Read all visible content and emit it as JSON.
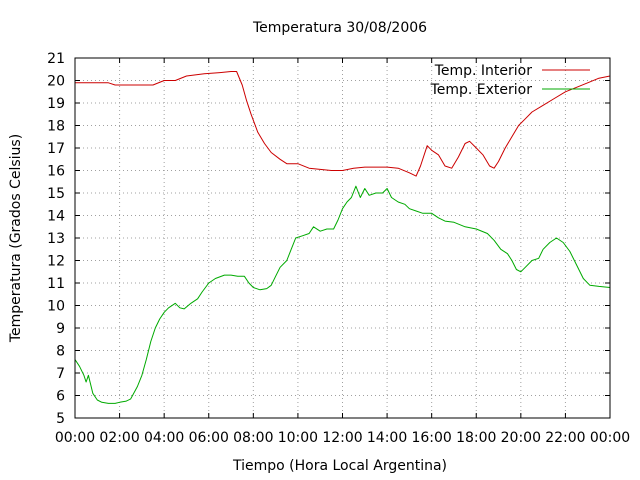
{
  "chart_data": {
    "type": "line",
    "title": "Temperatura 30/08/2006",
    "xlabel": "Tiempo (Hora Local Argentina)",
    "ylabel": "Temperatura (Grados Celsius)",
    "xlim": [
      0,
      24
    ],
    "ylim": [
      5,
      21
    ],
    "x_ticks": [
      "00:00",
      "02:00",
      "04:00",
      "06:00",
      "08:00",
      "10:00",
      "12:00",
      "14:00",
      "16:00",
      "18:00",
      "20:00",
      "22:00",
      "00:00"
    ],
    "y_ticks": [
      "5",
      "6",
      "7",
      "8",
      "9",
      "10",
      "11",
      "12",
      "13",
      "14",
      "15",
      "16",
      "17",
      "18",
      "19",
      "20",
      "21"
    ],
    "grid": true,
    "legend_position": "top-right",
    "series": [
      {
        "name": "Temp. Interior",
        "color": "#cc0000",
        "points": [
          [
            0,
            19.9
          ],
          [
            1.5,
            19.9
          ],
          [
            1.8,
            19.8
          ],
          [
            3.5,
            19.8
          ],
          [
            4,
            20.0
          ],
          [
            4.5,
            20.0
          ],
          [
            5,
            20.2
          ],
          [
            5.8,
            20.3
          ],
          [
            6.5,
            20.35
          ],
          [
            7,
            20.4
          ],
          [
            7.25,
            20.4
          ],
          [
            7.5,
            19.8
          ],
          [
            7.7,
            19.1
          ],
          [
            7.9,
            18.5
          ],
          [
            8.2,
            17.7
          ],
          [
            8.5,
            17.2
          ],
          [
            8.8,
            16.8
          ],
          [
            9.2,
            16.5
          ],
          [
            9.5,
            16.3
          ],
          [
            10,
            16.3
          ],
          [
            10.5,
            16.1
          ],
          [
            11,
            16.05
          ],
          [
            11.5,
            16.0
          ],
          [
            12,
            16.0
          ],
          [
            12.5,
            16.1
          ],
          [
            13,
            16.15
          ],
          [
            14,
            16.15
          ],
          [
            14.5,
            16.1
          ],
          [
            15,
            15.9
          ],
          [
            15.3,
            15.75
          ],
          [
            15.5,
            16.2
          ],
          [
            15.8,
            17.1
          ],
          [
            16,
            16.9
          ],
          [
            16.3,
            16.7
          ],
          [
            16.6,
            16.2
          ],
          [
            16.9,
            16.1
          ],
          [
            17.2,
            16.6
          ],
          [
            17.5,
            17.2
          ],
          [
            17.7,
            17.3
          ],
          [
            18,
            17.0
          ],
          [
            18.3,
            16.7
          ],
          [
            18.6,
            16.2
          ],
          [
            18.8,
            16.1
          ],
          [
            19,
            16.4
          ],
          [
            19.3,
            17.0
          ],
          [
            19.6,
            17.5
          ],
          [
            19.9,
            18.0
          ],
          [
            20.2,
            18.3
          ],
          [
            20.5,
            18.6
          ],
          [
            21,
            18.9
          ],
          [
            21.5,
            19.2
          ],
          [
            22,
            19.5
          ],
          [
            22.5,
            19.7
          ],
          [
            23,
            19.9
          ],
          [
            23.5,
            20.1
          ],
          [
            24,
            20.2
          ]
        ]
      },
      {
        "name": "Temp. Exterior",
        "color": "#00aa00",
        "points": [
          [
            0,
            7.6
          ],
          [
            0.2,
            7.3
          ],
          [
            0.4,
            6.9
          ],
          [
            0.5,
            6.6
          ],
          [
            0.6,
            6.9
          ],
          [
            0.7,
            6.5
          ],
          [
            0.8,
            6.1
          ],
          [
            1.0,
            5.8
          ],
          [
            1.2,
            5.7
          ],
          [
            1.5,
            5.65
          ],
          [
            1.8,
            5.65
          ],
          [
            2.0,
            5.7
          ],
          [
            2.3,
            5.75
          ],
          [
            2.5,
            5.85
          ],
          [
            2.8,
            6.4
          ],
          [
            3.0,
            6.9
          ],
          [
            3.2,
            7.6
          ],
          [
            3.4,
            8.4
          ],
          [
            3.6,
            9.0
          ],
          [
            3.8,
            9.4
          ],
          [
            4.0,
            9.7
          ],
          [
            4.2,
            9.9
          ],
          [
            4.5,
            10.1
          ],
          [
            4.7,
            9.9
          ],
          [
            4.9,
            9.85
          ],
          [
            5.2,
            10.1
          ],
          [
            5.5,
            10.3
          ],
          [
            5.7,
            10.6
          ],
          [
            6.0,
            11.0
          ],
          [
            6.3,
            11.2
          ],
          [
            6.7,
            11.35
          ],
          [
            7.0,
            11.35
          ],
          [
            7.3,
            11.3
          ],
          [
            7.6,
            11.3
          ],
          [
            7.8,
            11.0
          ],
          [
            8.0,
            10.8
          ],
          [
            8.3,
            10.7
          ],
          [
            8.6,
            10.75
          ],
          [
            8.8,
            10.9
          ],
          [
            9.0,
            11.3
          ],
          [
            9.2,
            11.7
          ],
          [
            9.5,
            12.0
          ],
          [
            9.7,
            12.5
          ],
          [
            9.9,
            13.0
          ],
          [
            10.2,
            13.1
          ],
          [
            10.5,
            13.2
          ],
          [
            10.7,
            13.5
          ],
          [
            11.0,
            13.3
          ],
          [
            11.3,
            13.4
          ],
          [
            11.6,
            13.4
          ],
          [
            11.8,
            13.8
          ],
          [
            12.0,
            14.3
          ],
          [
            12.2,
            14.6
          ],
          [
            12.4,
            14.8
          ],
          [
            12.6,
            15.3
          ],
          [
            12.8,
            14.8
          ],
          [
            13.0,
            15.2
          ],
          [
            13.2,
            14.9
          ],
          [
            13.5,
            15.0
          ],
          [
            13.8,
            15.0
          ],
          [
            14.0,
            15.2
          ],
          [
            14.2,
            14.8
          ],
          [
            14.5,
            14.6
          ],
          [
            14.8,
            14.5
          ],
          [
            15.0,
            14.3
          ],
          [
            15.3,
            14.2
          ],
          [
            15.6,
            14.1
          ],
          [
            16.0,
            14.1
          ],
          [
            16.3,
            13.9
          ],
          [
            16.6,
            13.75
          ],
          [
            17.0,
            13.7
          ],
          [
            17.5,
            13.5
          ],
          [
            18.0,
            13.4
          ],
          [
            18.5,
            13.2
          ],
          [
            18.8,
            12.9
          ],
          [
            19.1,
            12.5
          ],
          [
            19.4,
            12.3
          ],
          [
            19.6,
            12.0
          ],
          [
            19.8,
            11.6
          ],
          [
            20.0,
            11.5
          ],
          [
            20.2,
            11.7
          ],
          [
            20.5,
            12.0
          ],
          [
            20.8,
            12.1
          ],
          [
            21.0,
            12.5
          ],
          [
            21.3,
            12.8
          ],
          [
            21.6,
            13.0
          ],
          [
            21.9,
            12.8
          ],
          [
            22.2,
            12.4
          ],
          [
            22.5,
            11.8
          ],
          [
            22.8,
            11.2
          ],
          [
            23.1,
            10.9
          ],
          [
            23.5,
            10.85
          ],
          [
            24,
            10.8
          ]
        ]
      }
    ]
  }
}
